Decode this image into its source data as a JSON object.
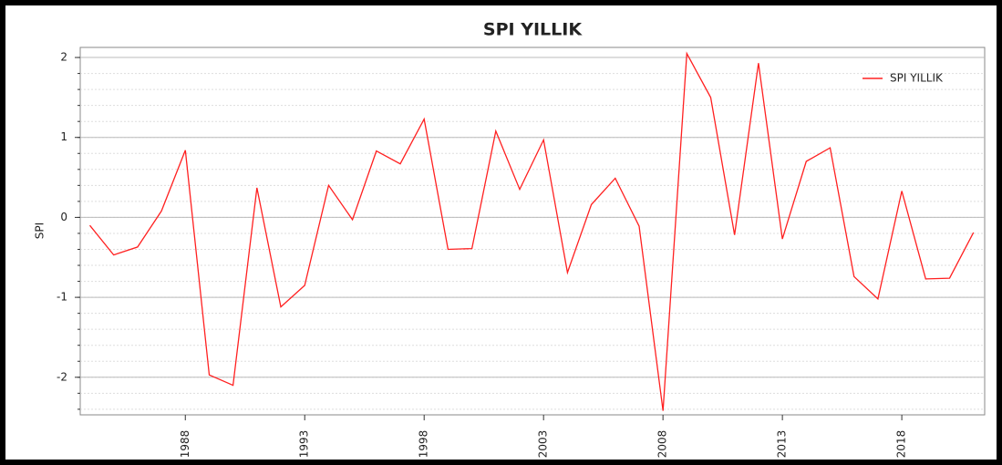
{
  "chart_data": {
    "type": "line",
    "title": "SPI YILLIK",
    "y_label": "SPI",
    "x": [
      1984,
      1985,
      1986,
      1987,
      1988,
      1989,
      1990,
      1991,
      1992,
      1993,
      1994,
      1995,
      1996,
      1997,
      1998,
      1999,
      2000,
      2001,
      2002,
      2003,
      2004,
      2005,
      2006,
      2007,
      2008,
      2009,
      2010,
      2011,
      2012,
      2013,
      2014,
      2015,
      2016,
      2017,
      2018,
      2019,
      2020,
      2021
    ],
    "series": [
      {
        "name": "SPI YILLIK",
        "color": "#ff2020",
        "values": [
          -0.1,
          -0.47,
          -0.37,
          0.08,
          0.84,
          -1.97,
          -2.1,
          0.37,
          -1.12,
          -0.85,
          0.4,
          -0.03,
          0.83,
          0.67,
          1.23,
          -0.4,
          -0.39,
          1.08,
          0.35,
          0.97,
          -0.69,
          0.16,
          0.49,
          -0.11,
          -2.42,
          2.05,
          1.5,
          -0.22,
          1.93,
          -0.27,
          0.7,
          0.87,
          -0.74,
          -1.02,
          0.33,
          -0.77,
          -0.76,
          -0.19
        ]
      }
    ],
    "xlim": [
      1983.6,
      2021.47
    ],
    "xticks": [
      1988,
      1993,
      1998,
      2003,
      2008,
      2013,
      2018
    ],
    "ylim": [
      -2.47,
      2.126
    ],
    "yticks": [
      -2,
      -1,
      0,
      1,
      2
    ],
    "grid": true,
    "legend": "upper right"
  }
}
